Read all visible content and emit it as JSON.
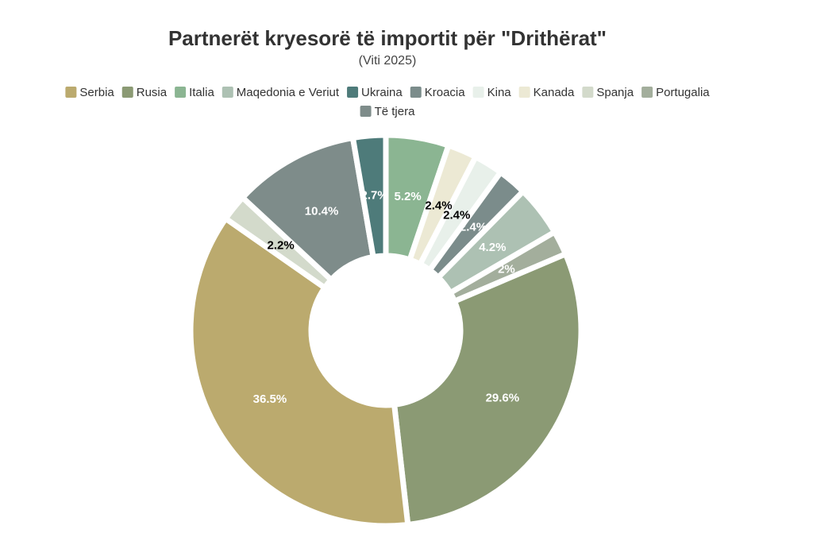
{
  "chart_data": {
    "type": "donut",
    "title": "Partnerët kryesorë të importit për \"Drithërat\"",
    "subtitle": "(Viti 2025)",
    "categories": [
      "Serbia",
      "Rusia",
      "Italia",
      "Maqedonia e Veriut",
      "Ukraina",
      "Kroacia",
      "Kina",
      "Kanada",
      "Spanja",
      "Portugalia",
      "Të tjera"
    ],
    "values": [
      36.5,
      29.6,
      5.2,
      4.2,
      2.7,
      2.4,
      2.4,
      2.4,
      2.2,
      2,
      10.4
    ],
    "value_labels": [
      "36.5%",
      "29.6%",
      "5.2%",
      "4.2%",
      "2.7%",
      "2.4%",
      "2.4%",
      "2.4%",
      "2.2%",
      "2%",
      "10.4%"
    ],
    "colors": [
      "#bbaa6e",
      "#8b9a74",
      "#8bb592",
      "#adc1b3",
      "#4e7b7a",
      "#7b8c8b",
      "#e8f0ea",
      "#ece9d4",
      "#d3dacb",
      "#a3ae9c",
      "#7e8c8a"
    ],
    "legend": "top"
  }
}
